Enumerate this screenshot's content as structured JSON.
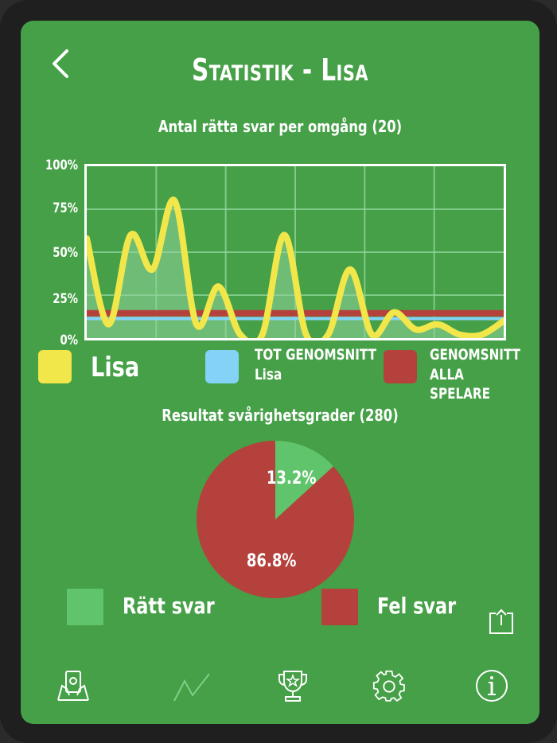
{
  "header": {
    "title": "Statistik - Lisa"
  },
  "line_chart": {
    "title": "Antal rätta svar per omgång (20)",
    "legend": {
      "player": "Lisa",
      "avg_player_line1": "TOT GENOMSNITT",
      "avg_player_line2": "Lisa",
      "avg_all_line1": "GENOMSNITT",
      "avg_all_line2": "ALLA SPELARE"
    },
    "y_ticks": [
      "100%",
      "75%",
      "50%",
      "25%",
      "0%"
    ]
  },
  "pie_chart": {
    "title": "Resultat svårighetsgrader (280)",
    "correct_pct": "13.2%",
    "wrong_pct": "86.8%",
    "legend": {
      "correct": "Rätt svar",
      "wrong": "Fel svar"
    }
  },
  "colors": {
    "background": "#45a047",
    "player_line": "#f2e74a",
    "avg_player": "#84d2f5",
    "avg_all": "#b5413c",
    "correct": "#5fc46b",
    "wrong": "#b5413c"
  },
  "nav": {
    "items": [
      "players-icon",
      "stats-icon",
      "trophy-icon",
      "settings-icon",
      "info-icon"
    ]
  },
  "chart_data": [
    {
      "type": "line",
      "title": "Antal rätta svar per omgång (20)",
      "xlabel": "",
      "ylabel": "",
      "ylim": [
        0,
        100
      ],
      "y_ticks": [
        "0%",
        "25%",
        "50%",
        "75%",
        "100%"
      ],
      "grid": true,
      "x": [
        1,
        2,
        3,
        4,
        5,
        6,
        7,
        8,
        9,
        10,
        11,
        12,
        13,
        14,
        15,
        16,
        17,
        18,
        19,
        20
      ],
      "series": [
        {
          "name": "Lisa",
          "values": [
            58,
            8,
            60,
            40,
            80,
            8,
            30,
            2,
            2,
            60,
            2,
            2,
            40,
            2,
            15,
            5,
            8,
            2,
            2,
            10
          ]
        },
        {
          "name": "TOT GENOMSNITT Lisa",
          "values": [
            13.2,
            13.2,
            13.2,
            13.2,
            13.2,
            13.2,
            13.2,
            13.2,
            13.2,
            13.2,
            13.2,
            13.2,
            13.2,
            13.2,
            13.2,
            13.2,
            13.2,
            13.2,
            13.2,
            13.2
          ]
        },
        {
          "name": "GENOMSNITT ALLA SPELARE",
          "values": [
            14,
            14,
            14,
            14,
            14,
            14,
            14,
            14,
            14,
            14,
            14,
            14,
            14,
            14,
            14,
            14,
            14,
            14,
            14,
            14
          ]
        }
      ]
    },
    {
      "type": "pie",
      "title": "Resultat svårighetsgrader (280)",
      "categories": [
        "Rätt svar",
        "Fel svar"
      ],
      "values": [
        13.2,
        86.8
      ]
    }
  ]
}
